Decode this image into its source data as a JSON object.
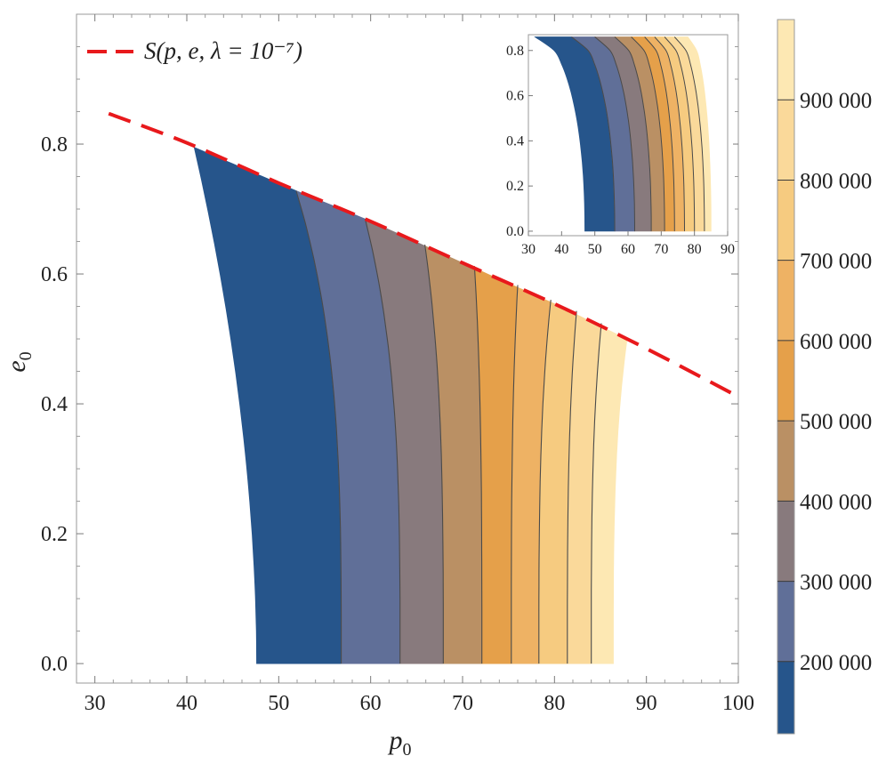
{
  "chart_data": [
    {
      "type": "contour",
      "xlabel": "p",
      "xlabel_sub": "0",
      "ylabel": "e",
      "ylabel_sub": "0",
      "xlim": [
        28,
        100
      ],
      "ylim": [
        -0.03,
        1.0
      ],
      "xticks": [
        30,
        40,
        50,
        60,
        70,
        80,
        90,
        100
      ],
      "yticks": [
        0.0,
        0.2,
        0.4,
        0.6,
        0.8
      ],
      "xtick_labels": [
        "30",
        "40",
        "50",
        "60",
        "70",
        "80",
        "90",
        "100"
      ],
      "ytick_labels": [
        "0.0",
        "0.2",
        "0.4",
        "0.6",
        "0.8"
      ],
      "contour_levels": [
        200000,
        300000,
        400000,
        500000,
        600000,
        700000,
        800000,
        900000
      ],
      "level_colors": [
        "#26558b",
        "#606f98",
        "#887a7d",
        "#ba9064",
        "#e5a04a",
        "#eeb264",
        "#f6cb80",
        "#fad99a",
        "#fde8b3"
      ],
      "band_boundaries_at_e0": [
        47.6,
        56.8,
        63.2,
        67.9,
        72.1,
        75.3,
        78.3,
        81.4,
        84.0,
        86.4
      ],
      "band_boundaries_top": [
        [
          40.8,
          0.795
        ],
        [
          51.9,
          0.728
        ],
        [
          59.4,
          0.685
        ],
        [
          65.9,
          0.645
        ],
        [
          71.3,
          0.612
        ],
        [
          76.0,
          0.583
        ],
        [
          79.6,
          0.56
        ],
        [
          82.4,
          0.543
        ],
        [
          85.1,
          0.524
        ],
        [
          87.9,
          0.5
        ]
      ],
      "series": [
        {
          "name": "S(p, e, λ = 10⁻⁷)",
          "style": "dashed",
          "color": "#e8191c",
          "x": [
            31.5,
            40,
            50,
            60,
            70,
            80,
            90,
            100
          ],
          "y": [
            0.847,
            0.802,
            0.74,
            0.681,
            0.617,
            0.554,
            0.485,
            0.411
          ]
        }
      ],
      "legend": {
        "position": "top-left",
        "label": "S(p, e, λ = 10⁻⁷)"
      }
    },
    {
      "type": "contour",
      "role": "inset",
      "position": "top-right",
      "xlim": [
        30,
        90
      ],
      "ylim": [
        -0.02,
        0.87
      ],
      "xtick_labels": [
        "30",
        "40",
        "50",
        "60",
        "70",
        "80",
        "90"
      ],
      "ytick_labels": [
        "0.0",
        "0.2",
        "0.4",
        "0.6",
        "0.8"
      ],
      "band_boundaries_at_e0": [
        47.0,
        56.0,
        62.0,
        67.0,
        71.0,
        74.0,
        77.0,
        80.0,
        83.0,
        85.0
      ],
      "band_boundaries_top_x": [
        32.0,
        43.0,
        50.0,
        56.0,
        61.0,
        65.0,
        68.0,
        71.0,
        74.0,
        78.0
      ]
    }
  ],
  "colorbar": {
    "labels": [
      "200 000",
      "300 000",
      "400 000",
      "500 000",
      "600 000",
      "700 000",
      "800 000",
      "900 000"
    ],
    "values": [
      200000,
      300000,
      400000,
      500000,
      600000,
      700000,
      800000,
      900000
    ],
    "min": 110000,
    "max": 1000000
  }
}
